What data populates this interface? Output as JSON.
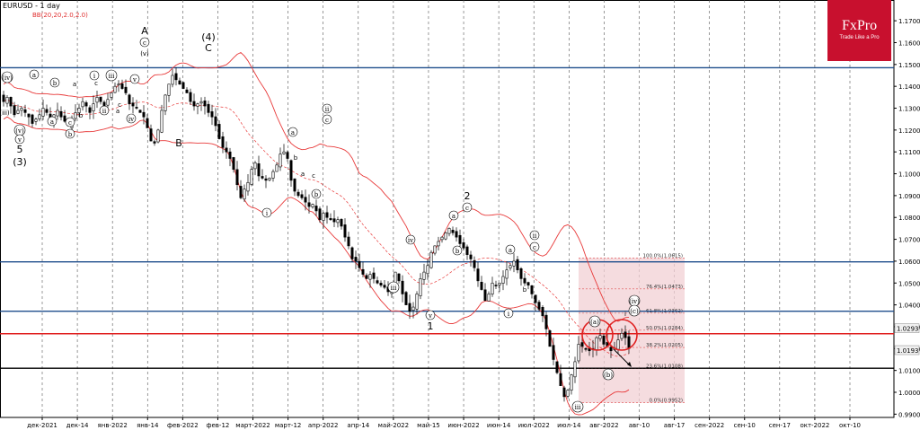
{
  "header": {
    "symbol": "EURUSD - 1 day",
    "indicator": "BB(20,20,2.0,2.0)"
  },
  "logo": {
    "brand": "FxPro",
    "tagline": "Trade Like a Pro"
  },
  "colors": {
    "hline_blue": "#1f4e8c",
    "hline_red": "#e02020",
    "bollinger": "#e83a3a",
    "fib_zone": "#f2d0d4",
    "candle_up": "#ffffff",
    "candle_down": "#000000"
  },
  "chart_data": {
    "type": "candlestick",
    "symbol": "EURUSD",
    "timeframe": "1 day",
    "ylim": [
      0.9885,
      1.1795
    ],
    "y_ticks": [
      "1.1700",
      "1.1600",
      "1.1500",
      "1.1400",
      "1.1300",
      "1.1200",
      "1.1100",
      "1.1000",
      "1.0900",
      "1.0800",
      "1.0700",
      "1.0600",
      "1.0500",
      "1.0400",
      "1.0300",
      "1.0200",
      "1.0100",
      "1.0000",
      "0.9900"
    ],
    "x_ticks": [
      "дек-2021",
      "дек-14",
      "янв-2022",
      "янв-14",
      "фев-2022",
      "фев-12",
      "март-2022",
      "март-12",
      "апр-2022",
      "апр-14",
      "май-2022",
      "май-15",
      "июн-2022",
      "июн-14",
      "июл-2022",
      "июл-14",
      "авг-2022",
      "авг-10",
      "авг-17",
      "сен-2022",
      "сен-10",
      "сен-17",
      "окт-2022",
      "окт-10"
    ],
    "price_labels": [
      {
        "text": "1.0293",
        "y": 1.0293
      },
      {
        "text": "1.0193",
        "y": 1.0193
      }
    ],
    "horizontal_lines": [
      {
        "y": 1.1485,
        "color": "blue"
      },
      {
        "y": 1.0597,
        "color": "blue"
      },
      {
        "y": 1.0371,
        "color": "blue"
      },
      {
        "y": 1.0268,
        "color": "red"
      },
      {
        "y": 1.011,
        "color": "black"
      }
    ],
    "fibonacci": [
      {
        "label": "100.0%(1.0615)",
        "y": 1.0615
      },
      {
        "label": "76.4%(1.0473)",
        "y": 1.0473
      },
      {
        "label": "61.8%(1.0362)",
        "y": 1.0362
      },
      {
        "label": "50.0%(1.0284)",
        "y": 1.0284
      },
      {
        "label": "38.2%(1.0205)",
        "y": 1.0205
      },
      {
        "label": "23.6%(1.0108)",
        "y": 1.0108
      },
      {
        "label": "0.0%(0.9952)",
        "y": 0.9952
      }
    ],
    "closes": [
      1.133,
      1.135,
      1.131,
      1.127,
      1.129,
      1.13,
      1.128,
      1.126,
      1.123,
      1.125,
      1.127,
      1.13,
      1.128,
      1.125,
      1.127,
      1.129,
      1.126,
      1.124,
      1.122,
      1.125,
      1.128,
      1.13,
      1.133,
      1.131,
      1.128,
      1.132,
      1.135,
      1.133,
      1.131,
      1.134,
      1.137,
      1.14,
      1.141,
      1.139,
      1.137,
      1.132,
      1.131,
      1.13,
      1.128,
      1.126,
      1.121,
      1.115,
      1.114,
      1.12,
      1.129,
      1.136,
      1.141,
      1.145,
      1.143,
      1.141,
      1.139,
      1.137,
      1.133,
      1.131,
      1.132,
      1.133,
      1.131,
      1.128,
      1.126,
      1.122,
      1.116,
      1.112,
      1.11,
      1.107,
      1.102,
      1.095,
      1.089,
      1.093,
      1.096,
      1.102,
      1.105,
      1.099,
      1.098,
      1.097,
      1.098,
      1.101,
      1.104,
      1.109,
      1.11,
      1.107,
      1.097,
      1.092,
      1.09,
      1.089,
      1.087,
      1.085,
      1.086,
      1.083,
      1.079,
      1.082,
      1.08,
      1.079,
      1.078,
      1.079,
      1.076,
      1.071,
      1.067,
      1.061,
      1.06,
      1.057,
      1.054,
      1.052,
      1.054,
      1.052,
      1.05,
      1.049,
      1.048,
      1.046,
      1.049,
      1.055,
      1.051,
      1.045,
      1.04,
      1.037,
      1.039,
      1.045,
      1.052,
      1.055,
      1.058,
      1.064,
      1.067,
      1.069,
      1.071,
      1.073,
      1.075,
      1.073,
      1.071,
      1.068,
      1.066,
      1.063,
      1.061,
      1.057,
      1.051,
      1.047,
      1.042,
      1.045,
      1.05,
      1.049,
      1.05,
      1.053,
      1.056,
      1.058,
      1.06,
      1.056,
      1.052,
      1.05,
      1.049,
      1.045,
      1.041,
      1.038,
      1.035,
      1.029,
      1.021,
      1.015,
      1.009,
      1.003,
      0.998,
      1.001,
      1.008,
      1.014,
      1.022,
      1.021,
      1.02,
      1.019,
      1.02,
      1.025,
      1.026,
      1.022,
      1.021,
      1.019,
      1.02,
      1.024,
      1.027,
      1.025,
      1.02
    ]
  },
  "annotations": [
    {
      "text": "(iv)",
      "circled": true,
      "x": 8,
      "y": 89
    },
    {
      "text": "(iii)",
      "circled": false,
      "x": 5,
      "y": 128
    },
    {
      "text": "(v)",
      "circled": true,
      "x": 22,
      "y": 148
    },
    {
      "text": "v",
      "circled": true,
      "x": 22,
      "y": 158
    },
    {
      "text": "5",
      "circled": false,
      "x": 22,
      "y": 170
    },
    {
      "text": "(3)",
      "circled": false,
      "x": 22,
      "y": 184
    },
    {
      "text": "a",
      "circled": true,
      "x": 38,
      "y": 86
    },
    {
      "text": "b",
      "circled": true,
      "x": 61,
      "y": 95
    },
    {
      "text": "a",
      "circled": true,
      "x": 58,
      "y": 138
    },
    {
      "text": "c",
      "circled": true,
      "x": 78,
      "y": 139
    },
    {
      "text": "b",
      "circled": true,
      "x": 78,
      "y": 152
    },
    {
      "text": "i",
      "circled": true,
      "x": 105,
      "y": 87
    },
    {
      "text": "iii",
      "circled": true,
      "x": 124,
      "y": 87
    },
    {
      "text": "a",
      "circled": false,
      "x": 83,
      "y": 96
    },
    {
      "text": "b",
      "circled": false,
      "x": 90,
      "y": 131
    },
    {
      "text": "c",
      "circled": false,
      "x": 107,
      "y": 95
    },
    {
      "text": "ii",
      "circled": true,
      "x": 116,
      "y": 126
    },
    {
      "text": "a",
      "circled": false,
      "x": 131,
      "y": 126
    },
    {
      "text": "c",
      "circled": false,
      "x": 133,
      "y": 119
    },
    {
      "text": "iv",
      "circled": true,
      "x": 146,
      "y": 135
    },
    {
      "text": "v",
      "circled": true,
      "x": 150,
      "y": 91
    },
    {
      "text": "A",
      "circled": false,
      "x": 161,
      "y": 38
    },
    {
      "text": "c",
      "circled": true,
      "x": 161,
      "y": 50
    },
    {
      "text": "(v)",
      "circled": false,
      "x": 161,
      "y": 62
    },
    {
      "text": "B",
      "circled": false,
      "x": 199,
      "y": 163
    },
    {
      "text": "(4)",
      "circled": false,
      "x": 232,
      "y": 45
    },
    {
      "text": "C",
      "circled": false,
      "x": 232,
      "y": 57
    },
    {
      "text": "ii",
      "circled": true,
      "x": 364,
      "y": 124
    },
    {
      "text": "c",
      "circled": true,
      "x": 364,
      "y": 136
    },
    {
      "text": "a",
      "circled": true,
      "x": 326,
      "y": 150
    },
    {
      "text": "b",
      "circled": false,
      "x": 329,
      "y": 178
    },
    {
      "text": "a",
      "circled": false,
      "x": 337,
      "y": 196
    },
    {
      "text": "c",
      "circled": false,
      "x": 349,
      "y": 198
    },
    {
      "text": "b",
      "circled": true,
      "x": 352,
      "y": 219
    },
    {
      "text": "i",
      "circled": true,
      "x": 297,
      "y": 240
    },
    {
      "text": "iv",
      "circled": true,
      "x": 457,
      "y": 270
    },
    {
      "text": "iii",
      "circled": true,
      "x": 438,
      "y": 323
    },
    {
      "text": "v",
      "circled": true,
      "x": 479,
      "y": 354
    },
    {
      "text": "1",
      "circled": false,
      "x": 479,
      "y": 367
    },
    {
      "text": "2",
      "circled": false,
      "x": 520,
      "y": 222
    },
    {
      "text": "c",
      "circled": true,
      "x": 520,
      "y": 234
    },
    {
      "text": "a",
      "circled": true,
      "x": 505,
      "y": 243
    },
    {
      "text": "b",
      "circled": true,
      "x": 509,
      "y": 282
    },
    {
      "text": "ii",
      "circled": true,
      "x": 595,
      "y": 265
    },
    {
      "text": "c",
      "circled": true,
      "x": 595,
      "y": 278
    },
    {
      "text": "a",
      "circled": true,
      "x": 568,
      "y": 281
    },
    {
      "text": "b",
      "circled": false,
      "x": 584,
      "y": 325
    },
    {
      "text": "i",
      "circled": true,
      "x": 566,
      "y": 352
    },
    {
      "text": "(a)",
      "circled": true,
      "x": 662,
      "y": 361
    },
    {
      "text": "(b)",
      "circled": true,
      "x": 677,
      "y": 420
    },
    {
      "text": "iii",
      "circled": true,
      "x": 643,
      "y": 456
    },
    {
      "text": "(iv)",
      "circled": true,
      "x": 706,
      "y": 338
    },
    {
      "text": "(c)",
      "circled": true,
      "x": 706,
      "y": 349
    },
    {
      "text": "i",
      "circled": false,
      "x": 696,
      "y": 352
    }
  ]
}
